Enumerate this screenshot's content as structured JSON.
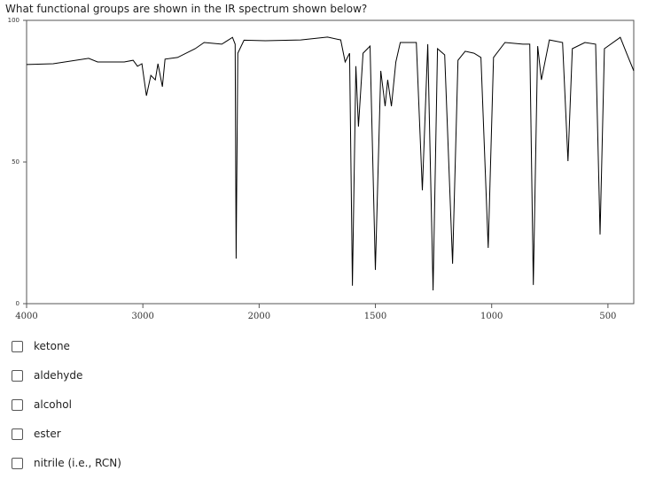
{
  "question": "What functional groups are shown in the IR spectrum shown below?",
  "chart_data": {
    "type": "line",
    "x": [
      4000,
      3771,
      3466,
      3389,
      3160,
      3084,
      3046,
      3008,
      2969,
      2931,
      2893,
      2870,
      2832,
      2809,
      2702,
      2550,
      2473,
      2321,
      2229,
      2206,
      2198,
      2183,
      2130,
      1973,
      1821,
      1706,
      1649,
      1630,
      1611,
      1599,
      1584,
      1573,
      1553,
      1523,
      1500,
      1477,
      1458,
      1447,
      1431,
      1412,
      1393,
      1324,
      1298,
      1275,
      1252,
      1233,
      1202,
      1168,
      1145,
      1114,
      1076,
      1046,
      1015,
      992,
      943,
      866,
      836,
      821,
      802,
      786,
      752,
      695,
      672,
      653,
      599,
      553,
      534,
      515,
      447,
      420,
      389
    ],
    "series": [
      {
        "color": "#000000",
        "values": [
          84.4,
          84.7,
          86.6,
          85.3,
          85.3,
          85.9,
          83.8,
          84.7,
          73.4,
          80.6,
          79,
          84.7,
          76.6,
          86.3,
          86.9,
          90,
          92.2,
          91.6,
          94,
          91.6,
          15.9,
          88.4,
          93,
          92.8,
          93.1,
          94.1,
          93.1,
          85.3,
          88.4,
          6.3,
          83.8,
          62.5,
          88.4,
          90.9,
          11.9,
          82.2,
          69.7,
          79,
          69.7,
          85.3,
          92.2,
          92.2,
          40,
          91.6,
          4.7,
          90,
          87.8,
          14.1,
          85.9,
          89.1,
          88.4,
          86.9,
          19.7,
          86.9,
          92.2,
          91.6,
          91.6,
          6.6,
          90.9,
          79,
          93.1,
          92.2,
          50.3,
          90,
          92.2,
          91.6,
          24.4,
          90,
          94,
          88.4,
          82.2
        ]
      }
    ],
    "xlim": [
      4000,
      389
    ],
    "xticks": [
      4000,
      3000,
      2000,
      1500,
      1000,
      500
    ],
    "xbreak": 2000,
    "ylim": [
      0,
      100
    ],
    "yticks": [
      0,
      50,
      100
    ]
  },
  "options": [
    "ketone",
    "aldehyde",
    "alcohol",
    "ester",
    "nitrile (i.e., RCN)"
  ]
}
